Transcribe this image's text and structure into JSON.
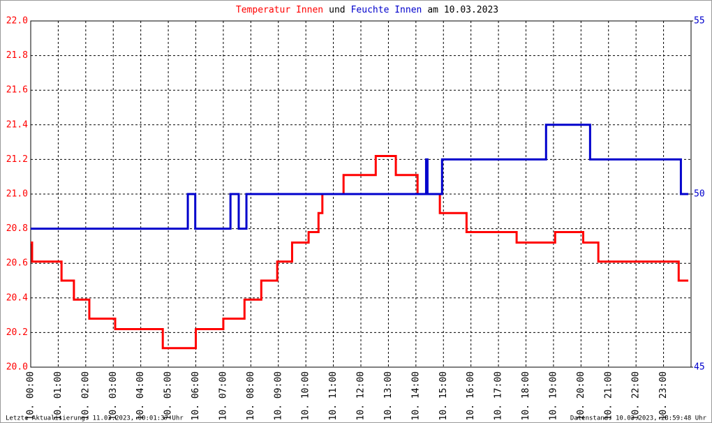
{
  "chart_data": {
    "type": "line",
    "title": [
      {
        "text": "Temperatur Innen",
        "color": "#ff0000"
      },
      {
        "text": "und",
        "color": "#000000"
      },
      {
        "text": "Feuchte Innen",
        "color": "#0000cc"
      },
      {
        "text": "am 10.03.2023",
        "color": "#000000"
      }
    ],
    "footer_left": "Letzte Aktualisierung: 11.03.2023, 00:01:37 Uhr",
    "footer_right": "Datenstand: 10.03.2023, 23:59:48 Uhr",
    "grid": true,
    "xlim": [
      0,
      24
    ],
    "xticks": [
      {
        "value": 0,
        "label": "10. 00:00"
      },
      {
        "value": 1,
        "label": "10. 01:00"
      },
      {
        "value": 2,
        "label": "10. 02:00"
      },
      {
        "value": 3,
        "label": "10. 03:00"
      },
      {
        "value": 4,
        "label": "10. 04:00"
      },
      {
        "value": 5,
        "label": "10. 05:00"
      },
      {
        "value": 6,
        "label": "10. 06:00"
      },
      {
        "value": 7,
        "label": "10. 07:00"
      },
      {
        "value": 8,
        "label": "10. 08:00"
      },
      {
        "value": 9,
        "label": "10. 09:00"
      },
      {
        "value": 10,
        "label": "10. 10:00"
      },
      {
        "value": 11,
        "label": "10. 11:00"
      },
      {
        "value": 12,
        "label": "10. 12:00"
      },
      {
        "value": 13,
        "label": "10. 13:00"
      },
      {
        "value": 14,
        "label": "10. 14:00"
      },
      {
        "value": 15,
        "label": "10. 15:00"
      },
      {
        "value": 16,
        "label": "10. 16:00"
      },
      {
        "value": 17,
        "label": "10. 17:00"
      },
      {
        "value": 18,
        "label": "10. 18:00"
      },
      {
        "value": 19,
        "label": "10. 19:00"
      },
      {
        "value": 20,
        "label": "10. 20:00"
      },
      {
        "value": 21,
        "label": "10. 21:00"
      },
      {
        "value": 22,
        "label": "10. 22:00"
      },
      {
        "value": 23,
        "label": "10. 23:00"
      }
    ],
    "ylim": [
      20.0,
      22.0
    ],
    "yticks": [
      {
        "value": 20.0,
        "label": "20.0"
      },
      {
        "value": 20.2,
        "label": "20.2"
      },
      {
        "value": 20.4,
        "label": "20.4"
      },
      {
        "value": 20.6,
        "label": "20.6"
      },
      {
        "value": 20.8,
        "label": "20.8"
      },
      {
        "value": 21.0,
        "label": "21.0"
      },
      {
        "value": 21.2,
        "label": "21.2"
      },
      {
        "value": 21.4,
        "label": "21.4"
      },
      {
        "value": 21.6,
        "label": "21.6"
      },
      {
        "value": 21.8,
        "label": "21.8"
      },
      {
        "value": 22.0,
        "label": "22.0"
      }
    ],
    "y_color": "#ff0000",
    "y2lim": [
      45,
      55
    ],
    "y2ticks": [
      45,
      50,
      55
    ],
    "y2_color": "#0000cc",
    "series": [
      {
        "name": "Temperatur Innen",
        "color": "#ff0000",
        "x": [
          0,
          0.05,
          0.05,
          1.12,
          1.12,
          1.57,
          1.57,
          2.13,
          2.13,
          3.07,
          3.07,
          4.8,
          4.8,
          6.0,
          6.0,
          7.0,
          7.0,
          7.77,
          7.77,
          8.38,
          8.38,
          8.96,
          8.96,
          9.5,
          9.5,
          10.1,
          10.1,
          10.46,
          10.46,
          10.6,
          10.6,
          11.37,
          11.37,
          12.54,
          12.54,
          13.27,
          13.27,
          14.06,
          14.06,
          14.87,
          14.87,
          15.84,
          15.84,
          17.66,
          17.66,
          19.06,
          19.06,
          20.08,
          20.08,
          20.63,
          20.63,
          23.55,
          23.55,
          23.9
        ],
        "values": [
          20.72,
          20.72,
          20.61,
          20.61,
          20.5,
          20.5,
          20.39,
          20.39,
          20.28,
          20.28,
          20.22,
          20.22,
          20.11,
          20.11,
          20.22,
          20.22,
          20.28,
          20.28,
          20.39,
          20.39,
          20.5,
          20.5,
          20.61,
          20.61,
          20.72,
          20.72,
          20.78,
          20.78,
          20.89,
          20.89,
          21.0,
          21.0,
          21.11,
          21.11,
          21.22,
          21.22,
          21.11,
          21.11,
          21.0,
          21.0,
          20.89,
          20.89,
          20.78,
          20.78,
          20.72,
          20.72,
          20.78,
          20.78,
          20.72,
          20.72,
          20.61,
          20.61,
          20.5,
          20.5
        ]
      },
      {
        "name": "Feuchte Innen",
        "color": "#0000cc",
        "axis": "y2",
        "x": [
          0,
          5.71,
          5.71,
          5.98,
          5.98,
          7.26,
          7.26,
          7.56,
          7.56,
          7.84,
          7.84,
          14.37,
          14.37,
          14.42,
          14.42,
          14.95,
          14.95,
          18.73,
          18.73,
          20.33,
          20.33,
          23.63,
          23.63,
          23.9
        ],
        "values": [
          49,
          49,
          50,
          50,
          49,
          49,
          50,
          50,
          49,
          49,
          50,
          50,
          51,
          51,
          50,
          50,
          51,
          51,
          52,
          52,
          51,
          51,
          50,
          50
        ]
      }
    ]
  }
}
